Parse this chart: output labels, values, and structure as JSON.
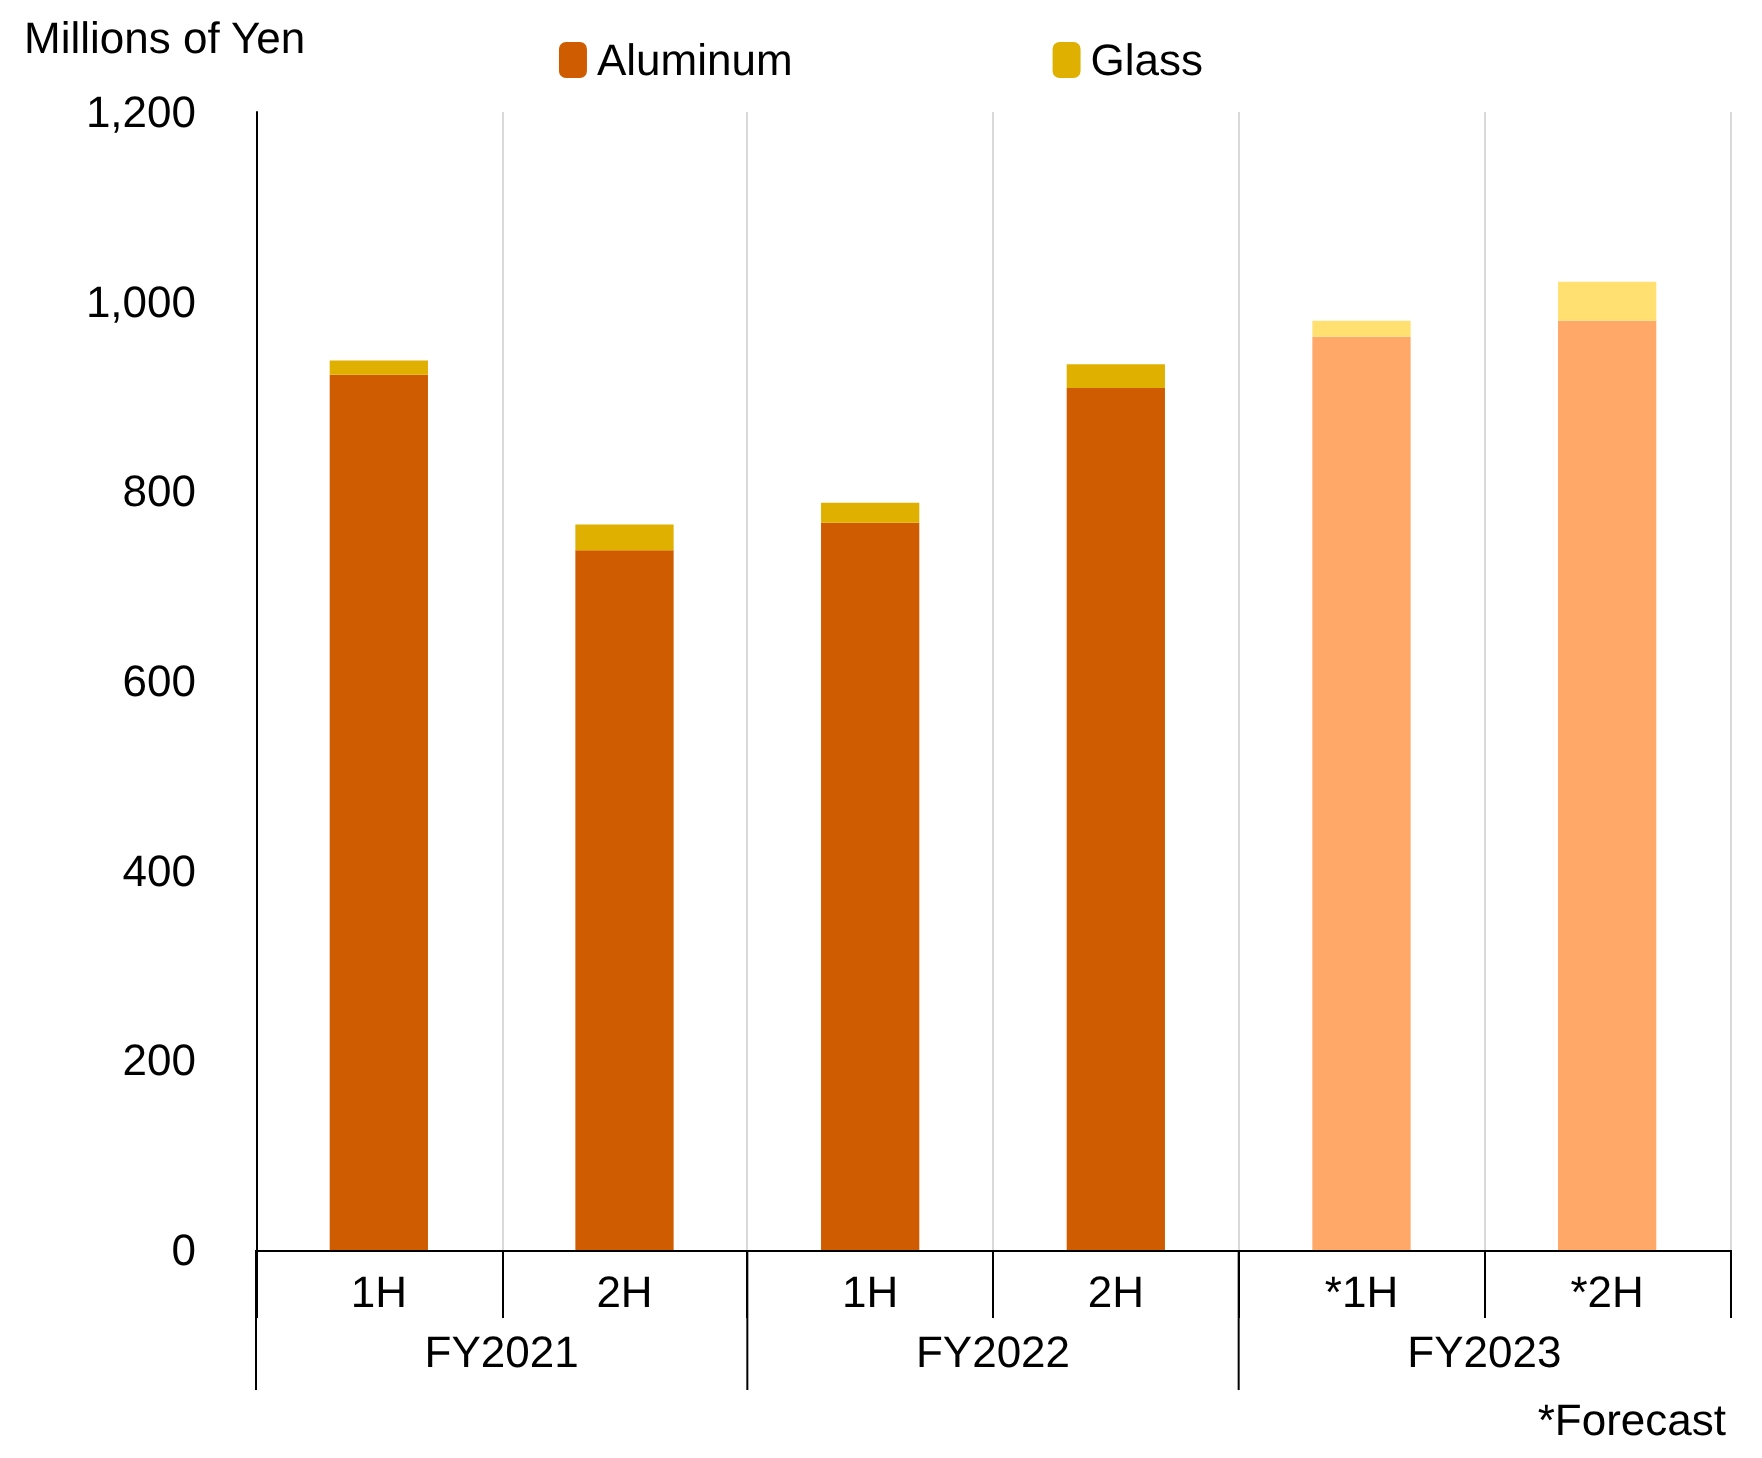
{
  "chart_data": {
    "type": "bar",
    "stacked": true,
    "ylabel": "Millions of Yen",
    "categories": [
      "1H",
      "2H",
      "1H",
      "2H",
      "*1H",
      "*2H"
    ],
    "series": [
      {
        "name": "Aluminum",
        "color": "#d05c00",
        "colors": [
          "#d05c00",
          "#d05c00",
          "#d05c00",
          "#d05c00",
          "#ffa868",
          "#ffa868"
        ],
        "values": [
          923,
          738,
          767,
          909,
          963,
          980
        ]
      },
      {
        "name": "Glass",
        "color": "#e0b000",
        "colors": [
          "#e0b000",
          "#e0b000",
          "#e0b000",
          "#e0b000",
          "#ffe070",
          "#ffe070"
        ],
        "values": [
          15,
          27,
          21,
          25,
          17,
          41
        ]
      }
    ],
    "ylim": [
      0,
      1200
    ],
    "yticks": [
      0,
      200,
      400,
      600,
      800,
      {
        "value": 1000,
        "label": "1,000"
      },
      {
        "value": 1200,
        "label": "1,200"
      }
    ],
    "grid": "x",
    "legend": "top",
    "annotations": [
      "FY2021",
      "FY2022",
      "FY2023",
      "*Forecast"
    ]
  }
}
